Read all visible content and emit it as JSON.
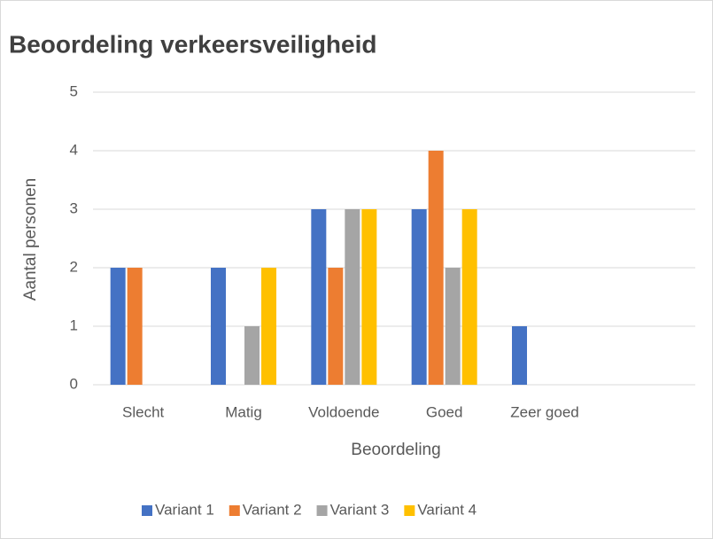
{
  "chart_data": {
    "type": "bar",
    "title": "Beoordeling verkeersveiligheid",
    "x_label": "Beoordeling",
    "y_label": "Aantal personen",
    "categories": [
      "Slecht",
      "Matig",
      "Voldoende",
      "Goed",
      "Zeer goed",
      null
    ],
    "series": [
      {
        "name": "Variant 1",
        "color": "#4472c4",
        "values": [
          2,
          2,
          3,
          3,
          1,
          0
        ]
      },
      {
        "name": "Variant 2",
        "color": "#ed7d31",
        "values": [
          2,
          0,
          2,
          4,
          0,
          0
        ]
      },
      {
        "name": "Variant 3",
        "color": "#a5a5a5",
        "values": [
          0,
          1,
          3,
          2,
          0,
          0
        ]
      },
      {
        "name": "Variant 4",
        "color": "#ffc000",
        "values": [
          0,
          2,
          3,
          3,
          0,
          0
        ]
      }
    ],
    "ylim": [
      0,
      5
    ],
    "yticks": [
      0,
      1,
      2,
      3,
      4,
      5
    ],
    "grid": true,
    "legend": "bottom"
  }
}
